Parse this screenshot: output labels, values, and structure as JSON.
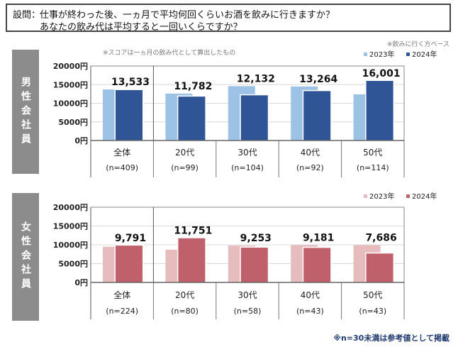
{
  "question": {
    "label": "設問：",
    "line1": "仕事が終わった後、一ヵ月で平均何回くらいお酒を飲みに行きますか？",
    "line2": "あなたの飲み代は平均すると一回いくらですか？"
  },
  "notes": {
    "base": "※飲みに行く方ベース",
    "score": "※スコアは一ヵ月の飲み代として算出したもの",
    "footnote": "※n=30未満は参考値として掲載"
  },
  "chart_data": [
    {
      "type": "bar",
      "panel_label": "男性会社員",
      "categories": [
        "全体",
        "20代",
        "30代",
        "40代",
        "50代"
      ],
      "sample_sizes": [
        "(n=409)",
        "(n=99)",
        "(n=104)",
        "(n=92)",
        "(n=114)"
      ],
      "ylim": [
        0,
        20000
      ],
      "yticks": [
        "0円",
        "5000円",
        "10000円",
        "15000円",
        "20000円"
      ],
      "legend_position": "top-right",
      "series": [
        {
          "name": "2023年",
          "color": "#9cc3e6",
          "values": [
            13700,
            12600,
            14600,
            14500,
            12400
          ]
        },
        {
          "name": "2024年",
          "color": "#2f5597",
          "values": [
            13533,
            11782,
            12132,
            13264,
            16001
          ]
        }
      ],
      "data_labels": [
        "13,533",
        "11,782",
        "12,132",
        "13,264",
        "16,001"
      ]
    },
    {
      "type": "bar",
      "panel_label": "女性会社員",
      "categories": [
        "全体",
        "20代",
        "30代",
        "40代",
        "50代"
      ],
      "sample_sizes": [
        "(n=224)",
        "(n=80)",
        "(n=58)",
        "(n=43)",
        "(n=43)"
      ],
      "ylim": [
        0,
        20000
      ],
      "yticks": [
        "0円",
        "5000円",
        "10000円",
        "15000円",
        "20000円"
      ],
      "legend_position": "top-right",
      "series": [
        {
          "name": "2023年",
          "color": "#e6bcbf",
          "values": [
            9500,
            8700,
            9800,
            9900,
            9900
          ]
        },
        {
          "name": "2024年",
          "color": "#c0606a",
          "values": [
            9791,
            11751,
            9253,
            9181,
            7686
          ]
        }
      ],
      "data_labels": [
        "9,791",
        "11,751",
        "9,253",
        "9,181",
        "7,686"
      ]
    }
  ]
}
